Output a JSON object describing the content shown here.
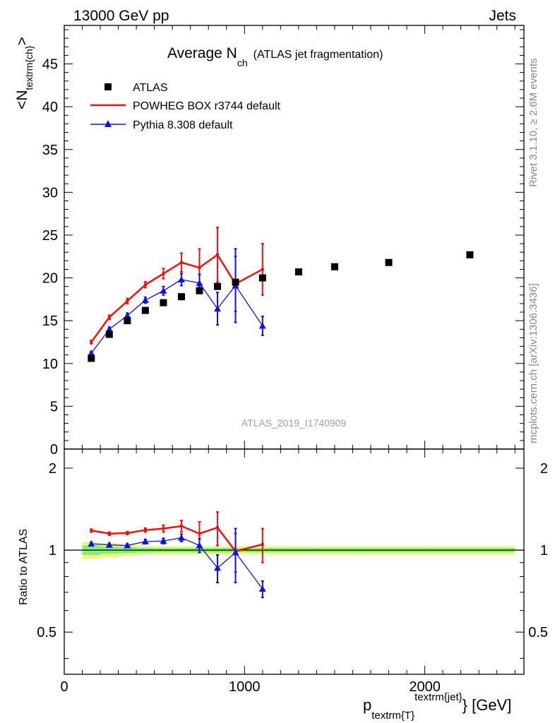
{
  "header": {
    "left": "13000 GeV pp",
    "right": "Jets"
  },
  "side_labels": {
    "rivet": "Rivet 3.1.10, ≥ 2.6M events",
    "mcplots": "mcplots.cern.ch [arXiv:1306.3436]"
  },
  "chart_data": {
    "type": "line",
    "title": "Average N",
    "title_sub": "ch",
    "title_suffix": "(ATLAS jet fragmentation)",
    "analysis_id": "ATLAS_2019_I1740909",
    "ylabel_main": "<N",
    "ylabel_main_sub": "textrm{ch}",
    "ylabel_main_tail": ">",
    "ylabel_ratio": "Ratio to ATLAS",
    "xlabel": "p",
    "xlabel_sub": "textrm{T}",
    "xlabel_sup": "textrm{jet}",
    "xlabel_unit": "} [GeV]",
    "xlim": [
      0,
      2550
    ],
    "ylim_main": [
      0,
      49.5
    ],
    "ylim_ratio": [
      0.35,
      2.35
    ],
    "x_ticks": [
      0,
      1000,
      2000
    ],
    "x_tick_labels": [
      "0",
      "1000",
      "2000"
    ],
    "y_ticks_main": [
      0,
      5,
      10,
      15,
      20,
      25,
      30,
      35,
      40,
      45
    ],
    "y_tick_labels_main": [
      "0",
      "5",
      "10",
      "15",
      "20",
      "25",
      "30",
      "35",
      "40",
      "45"
    ],
    "y_ticks_ratio": [
      0.5,
      1,
      2
    ],
    "y_tick_labels_ratio": [
      "0.5",
      "1",
      "2"
    ],
    "legend": {
      "placement": "top-left",
      "entries": [
        "ATLAS",
        "POWHEG BOX r3744 default",
        "Pythia 8.308 default"
      ]
    },
    "colors": {
      "data": "#000000",
      "powheg": "#ee1111",
      "pythia": "#1111dd",
      "band_outer": "#f5f57a",
      "band_inner": "#7ef07e"
    },
    "data": {
      "name": "ATLAS",
      "x": [
        150,
        250,
        350,
        450,
        550,
        650,
        750,
        850,
        950,
        1100,
        1300,
        1500,
        1800,
        2250
      ],
      "y": [
        10.6,
        13.4,
        15.0,
        16.2,
        17.1,
        17.8,
        18.5,
        19.0,
        19.5,
        20.0,
        20.7,
        21.3,
        21.8,
        22.7
      ]
    },
    "series": [
      {
        "name": "POWHEG BOX r3744 default",
        "x": [
          150,
          250,
          350,
          450,
          550,
          650,
          750,
          850,
          950,
          1100
        ],
        "y": [
          12.5,
          15.4,
          17.3,
          19.2,
          20.5,
          21.8,
          21.2,
          22.7,
          19.3,
          21.0
        ],
        "err": [
          0.2,
          0.25,
          0.3,
          0.35,
          0.6,
          1.1,
          2.2,
          3.2,
          3.2,
          3.0
        ],
        "ratio": [
          1.18,
          1.15,
          1.155,
          1.185,
          1.2,
          1.225,
          1.15,
          1.21,
          0.99,
          1.05
        ],
        "ratio_err": [
          0.015,
          0.015,
          0.015,
          0.02,
          0.035,
          0.06,
          0.12,
          0.17,
          0.16,
          0.15
        ]
      },
      {
        "name": "Pythia 8.308 default",
        "x": [
          150,
          250,
          350,
          450,
          550,
          650,
          750,
          850,
          950,
          1100
        ],
        "y": [
          11.2,
          14.0,
          15.6,
          17.4,
          18.5,
          19.8,
          19.4,
          16.4,
          19.1,
          14.4
        ],
        "err": [
          0.2,
          0.25,
          0.3,
          0.35,
          0.5,
          0.7,
          1.0,
          1.9,
          4.3,
          1.1
        ],
        "ratio": [
          1.055,
          1.045,
          1.04,
          1.075,
          1.08,
          1.11,
          1.04,
          0.86,
          0.98,
          0.72
        ],
        "ratio_err": [
          0.015,
          0.015,
          0.015,
          0.02,
          0.025,
          0.035,
          0.06,
          0.1,
          0.22,
          0.05
        ]
      }
    ],
    "ratio_band": {
      "x_edges": [
        100,
        200,
        300,
        400,
        500,
        600,
        700,
        800,
        900,
        1000,
        1200,
        1400,
        1600,
        2000,
        2500
      ],
      "outer": [
        0.07,
        0.06,
        0.045,
        0.04,
        0.035,
        0.035,
        0.035,
        0.035,
        0.035,
        0.035,
        0.035,
        0.035,
        0.035,
        0.035
      ],
      "inner": [
        0.04,
        0.03,
        0.025,
        0.02,
        0.018,
        0.018,
        0.018,
        0.018,
        0.018,
        0.018,
        0.018,
        0.018,
        0.018,
        0.018
      ]
    }
  }
}
